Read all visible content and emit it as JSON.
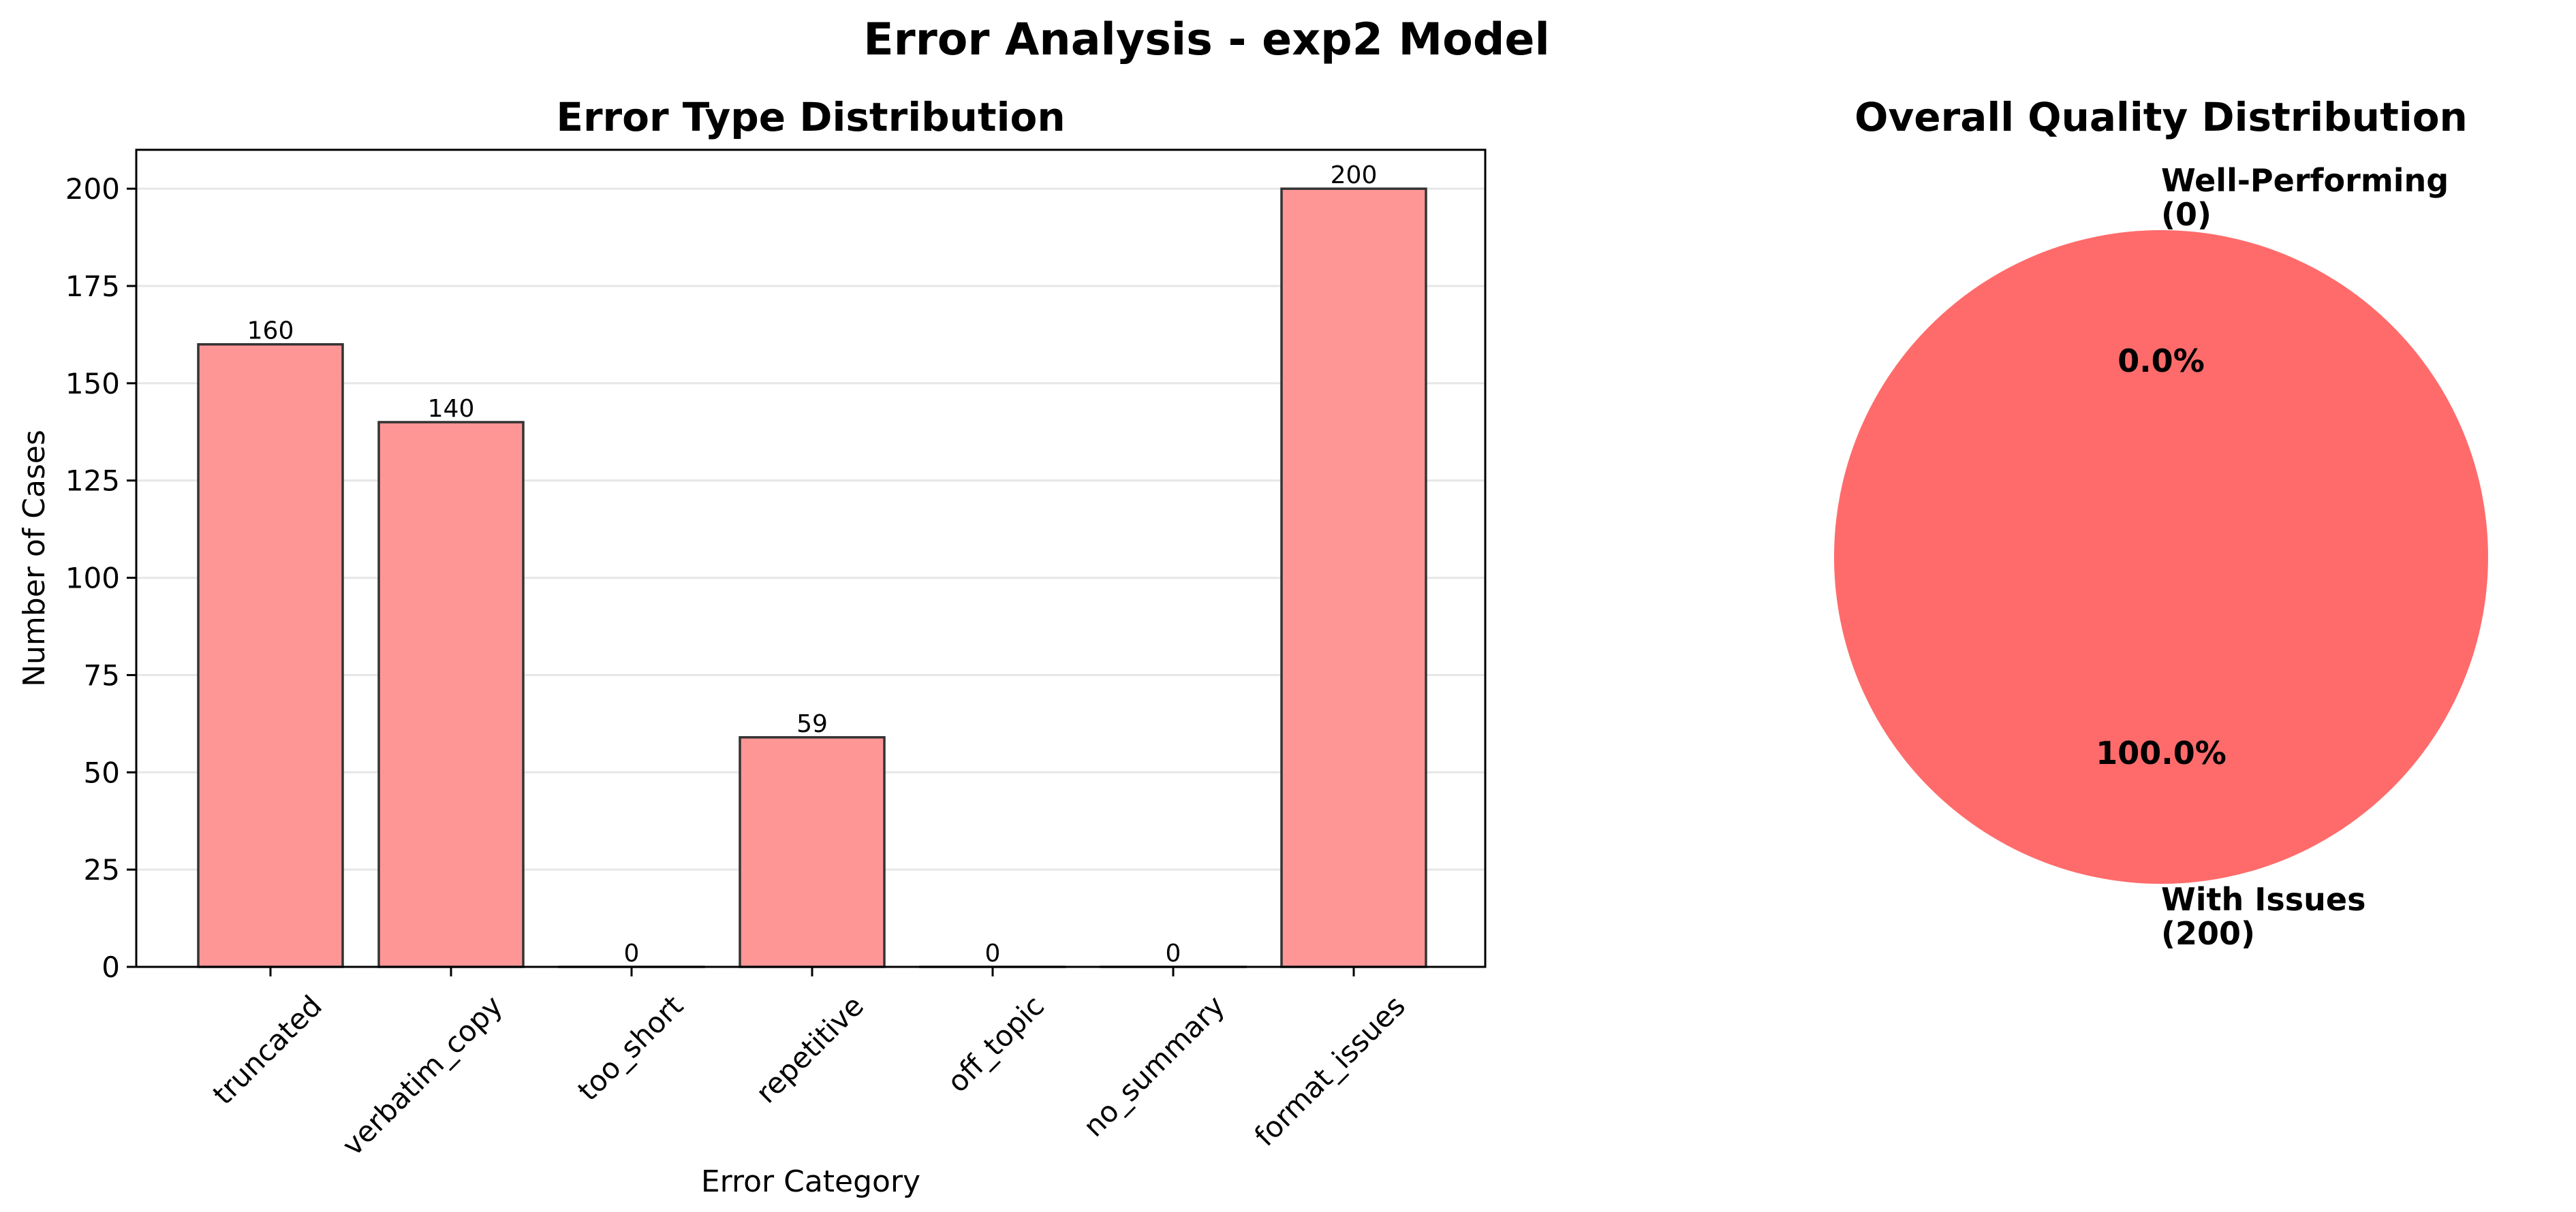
{
  "figure": {
    "title": "Error Analysis - exp2 Model"
  },
  "chart_data": [
    {
      "type": "bar",
      "title": "Error Type Distribution",
      "xlabel": "Error Category",
      "ylabel": "Number of Cases",
      "categories": [
        "truncated",
        "verbatim_copy",
        "too_short",
        "repetitive",
        "off_topic",
        "no_summary",
        "format_issues"
      ],
      "values": [
        160,
        140,
        0,
        59,
        0,
        0,
        200
      ],
      "data_labels": [
        "160",
        "140",
        "0",
        "59",
        "0",
        "0",
        "200"
      ],
      "ylim": [
        0,
        210
      ],
      "yticks": [
        0,
        25,
        50,
        75,
        100,
        125,
        150,
        175,
        200
      ],
      "grid": "y",
      "bar_color": "#ff9696",
      "edge_color": "#333333"
    },
    {
      "type": "pie",
      "title": "Overall Quality Distribution",
      "slices": [
        {
          "label": "Well-Performing\n(0)",
          "value": 0,
          "pct_label": "0.0%",
          "color": "#66cc66"
        },
        {
          "label": "With Issues\n(200)",
          "value": 200,
          "pct_label": "100.0%",
          "color": "#ff6b6b"
        }
      ]
    }
  ]
}
